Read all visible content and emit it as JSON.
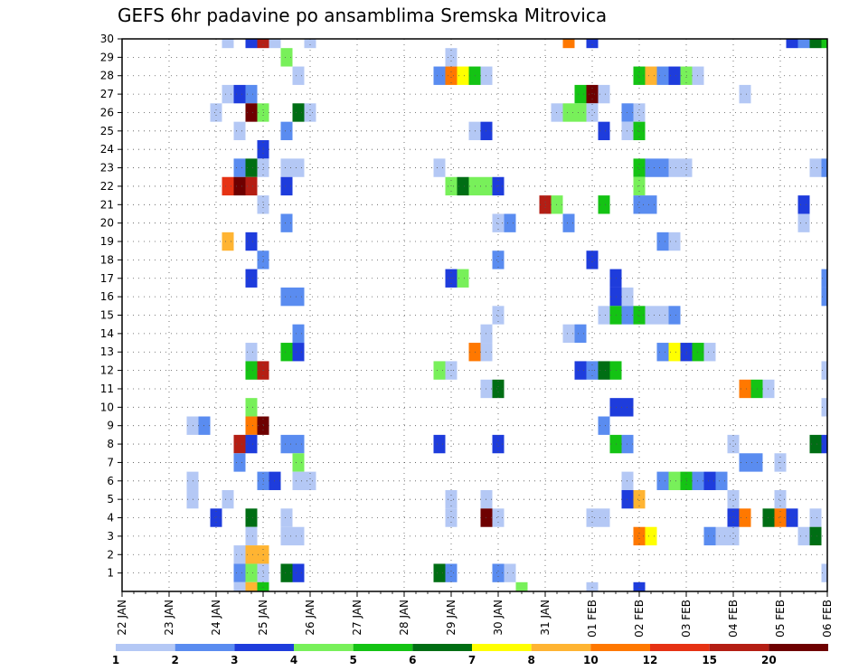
{
  "chart_data": {
    "type": "heatmap",
    "title": "GEFS 6hr padavine po ansamblima Sremska Mitrovica",
    "xlabel": "",
    "ylabel": "",
    "x_ticks": [
      "22 JAN",
      "23 JAN",
      "24 JAN",
      "25 JAN",
      "26 JAN",
      "27 JAN",
      "28 JAN",
      "29 JAN",
      "30 JAN",
      "31 JAN",
      "01 FEB",
      "02 FEB",
      "03 FEB",
      "04 FEB",
      "05 FEB",
      "06 FEB"
    ],
    "x_unit": "6-hour step (4 per day), step 0 = 22 JAN 00Z",
    "x_range": [
      0,
      60
    ],
    "y_ticks": [
      1,
      2,
      3,
      4,
      5,
      6,
      7,
      8,
      9,
      10,
      11,
      12,
      13,
      14,
      15,
      16,
      17,
      18,
      19,
      20,
      21,
      22,
      23,
      24,
      25,
      26,
      27,
      28,
      29,
      30
    ],
    "y_range": [
      0,
      30
    ],
    "grid": true,
    "legend": {
      "position": "bottom",
      "labels": [
        "1",
        "2",
        "3",
        "4",
        "5",
        "6",
        "7",
        "8",
        "10",
        "12",
        "15",
        "20"
      ],
      "colors": [
        "#b4c8f5",
        "#5a8cf0",
        "#1e3cdc",
        "#78f05a",
        "#14c314",
        "#006e14",
        "#ffff00",
        "#ffb432",
        "#ff7800",
        "#e63214",
        "#b41e14",
        "#6e0000"
      ]
    },
    "cells_format": "[member, step, precipitation_class] where class index maps to legend colors",
    "cells": [
      [
        30,
        9,
        0
      ],
      [
        30,
        11,
        2
      ],
      [
        30,
        12,
        10
      ],
      [
        30,
        13,
        0
      ],
      [
        30,
        16,
        0
      ],
      [
        30,
        38,
        8
      ],
      [
        30,
        40,
        2
      ],
      [
        30,
        57,
        2
      ],
      [
        30,
        58,
        1
      ],
      [
        30,
        59,
        5
      ],
      [
        30,
        60,
        4
      ],
      [
        29,
        14,
        3
      ],
      [
        29,
        28,
        0
      ],
      [
        28,
        15,
        0
      ],
      [
        28,
        27,
        1
      ],
      [
        28,
        28,
        8
      ],
      [
        28,
        29,
        6
      ],
      [
        28,
        30,
        4
      ],
      [
        28,
        31,
        0
      ],
      [
        28,
        44,
        4
      ],
      [
        28,
        45,
        7
      ],
      [
        28,
        46,
        1
      ],
      [
        28,
        47,
        2
      ],
      [
        28,
        48,
        3
      ],
      [
        28,
        49,
        0
      ],
      [
        27,
        9,
        0
      ],
      [
        27,
        10,
        2
      ],
      [
        27,
        11,
        1
      ],
      [
        27,
        39,
        4
      ],
      [
        27,
        40,
        11
      ],
      [
        27,
        41,
        0
      ],
      [
        27,
        53,
        0
      ],
      [
        26,
        8,
        0
      ],
      [
        26,
        11,
        11
      ],
      [
        26,
        12,
        3
      ],
      [
        26,
        15,
        5
      ],
      [
        26,
        16,
        0
      ],
      [
        26,
        37,
        0
      ],
      [
        26,
        38,
        3
      ],
      [
        26,
        39,
        3
      ],
      [
        26,
        40,
        0
      ],
      [
        26,
        43,
        1
      ],
      [
        26,
        44,
        0
      ],
      [
        25,
        10,
        0
      ],
      [
        25,
        14,
        1
      ],
      [
        25,
        30,
        0
      ],
      [
        25,
        31,
        2
      ],
      [
        25,
        41,
        2
      ],
      [
        25,
        43,
        0
      ],
      [
        25,
        44,
        4
      ],
      [
        24,
        12,
        2
      ],
      [
        23,
        10,
        1
      ],
      [
        23,
        11,
        5
      ],
      [
        23,
        12,
        0
      ],
      [
        23,
        14,
        0
      ],
      [
        23,
        15,
        0
      ],
      [
        23,
        27,
        0
      ],
      [
        23,
        44,
        4
      ],
      [
        23,
        45,
        1
      ],
      [
        23,
        46,
        1
      ],
      [
        23,
        47,
        0
      ],
      [
        23,
        48,
        0
      ],
      [
        23,
        59,
        0
      ],
      [
        23,
        60,
        1
      ],
      [
        22,
        9,
        9
      ],
      [
        22,
        10,
        11
      ],
      [
        22,
        11,
        10
      ],
      [
        22,
        14,
        2
      ],
      [
        22,
        28,
        3
      ],
      [
        22,
        29,
        5
      ],
      [
        22,
        30,
        3
      ],
      [
        22,
        31,
        3
      ],
      [
        22,
        32,
        2
      ],
      [
        22,
        44,
        3
      ],
      [
        21,
        12,
        0
      ],
      [
        21,
        36,
        10
      ],
      [
        21,
        37,
        3
      ],
      [
        21,
        41,
        4
      ],
      [
        21,
        44,
        1
      ],
      [
        21,
        45,
        1
      ],
      [
        21,
        58,
        2
      ],
      [
        20,
        14,
        1
      ],
      [
        20,
        32,
        0
      ],
      [
        20,
        33,
        1
      ],
      [
        20,
        38,
        1
      ],
      [
        20,
        58,
        0
      ],
      [
        19,
        9,
        7
      ],
      [
        19,
        11,
        2
      ],
      [
        19,
        46,
        1
      ],
      [
        19,
        47,
        0
      ],
      [
        18,
        12,
        1
      ],
      [
        18,
        32,
        1
      ],
      [
        18,
        40,
        2
      ],
      [
        17,
        11,
        2
      ],
      [
        17,
        28,
        2
      ],
      [
        17,
        29,
        3
      ],
      [
        17,
        42,
        2
      ],
      [
        17,
        60,
        1
      ],
      [
        16,
        14,
        1
      ],
      [
        16,
        15,
        1
      ],
      [
        16,
        42,
        2
      ],
      [
        16,
        43,
        0
      ],
      [
        16,
        60,
        1
      ],
      [
        15,
        32,
        0
      ],
      [
        15,
        41,
        0
      ],
      [
        15,
        42,
        4
      ],
      [
        15,
        43,
        1
      ],
      [
        15,
        44,
        4
      ],
      [
        15,
        45,
        0
      ],
      [
        15,
        46,
        0
      ],
      [
        15,
        47,
        1
      ],
      [
        14,
        15,
        1
      ],
      [
        14,
        31,
        0
      ],
      [
        14,
        38,
        0
      ],
      [
        14,
        39,
        1
      ],
      [
        13,
        11,
        0
      ],
      [
        13,
        14,
        4
      ],
      [
        13,
        15,
        2
      ],
      [
        13,
        30,
        8
      ],
      [
        13,
        31,
        0
      ],
      [
        13,
        46,
        1
      ],
      [
        13,
        47,
        6
      ],
      [
        13,
        48,
        2
      ],
      [
        13,
        49,
        4
      ],
      [
        13,
        50,
        0
      ],
      [
        12,
        11,
        4
      ],
      [
        12,
        12,
        10
      ],
      [
        12,
        27,
        3
      ],
      [
        12,
        28,
        0
      ],
      [
        12,
        39,
        2
      ],
      [
        12,
        40,
        1
      ],
      [
        12,
        41,
        5
      ],
      [
        12,
        42,
        4
      ],
      [
        12,
        60,
        0
      ],
      [
        11,
        31,
        0
      ],
      [
        11,
        32,
        5
      ],
      [
        11,
        53,
        8
      ],
      [
        11,
        54,
        4
      ],
      [
        11,
        55,
        0
      ],
      [
        10,
        11,
        3
      ],
      [
        10,
        42,
        2
      ],
      [
        10,
        43,
        2
      ],
      [
        10,
        60,
        0
      ],
      [
        9,
        6,
        0
      ],
      [
        9,
        7,
        1
      ],
      [
        9,
        11,
        8
      ],
      [
        9,
        12,
        11
      ],
      [
        9,
        41,
        1
      ],
      [
        8,
        10,
        10
      ],
      [
        8,
        11,
        2
      ],
      [
        8,
        14,
        1
      ],
      [
        8,
        15,
        1
      ],
      [
        8,
        27,
        2
      ],
      [
        8,
        32,
        2
      ],
      [
        8,
        42,
        4
      ],
      [
        8,
        43,
        1
      ],
      [
        8,
        52,
        0
      ],
      [
        8,
        59,
        5
      ],
      [
        8,
        60,
        2
      ],
      [
        7,
        10,
        1
      ],
      [
        7,
        15,
        3
      ],
      [
        7,
        53,
        1
      ],
      [
        7,
        54,
        1
      ],
      [
        7,
        56,
        0
      ],
      [
        6,
        6,
        0
      ],
      [
        6,
        12,
        1
      ],
      [
        6,
        13,
        2
      ],
      [
        6,
        15,
        0
      ],
      [
        6,
        16,
        0
      ],
      [
        6,
        43,
        0
      ],
      [
        6,
        46,
        1
      ],
      [
        6,
        47,
        3
      ],
      [
        6,
        48,
        4
      ],
      [
        6,
        49,
        1
      ],
      [
        6,
        50,
        2
      ],
      [
        6,
        51,
        1
      ],
      [
        5,
        6,
        0
      ],
      [
        5,
        9,
        0
      ],
      [
        5,
        28,
        0
      ],
      [
        5,
        31,
        0
      ],
      [
        5,
        43,
        2
      ],
      [
        5,
        44,
        7
      ],
      [
        5,
        52,
        0
      ],
      [
        5,
        56,
        0
      ],
      [
        4,
        8,
        2
      ],
      [
        4,
        11,
        5
      ],
      [
        4,
        14,
        0
      ],
      [
        4,
        28,
        0
      ],
      [
        4,
        31,
        11
      ],
      [
        4,
        32,
        0
      ],
      [
        4,
        40,
        0
      ],
      [
        4,
        41,
        0
      ],
      [
        4,
        52,
        2
      ],
      [
        4,
        53,
        8
      ],
      [
        4,
        55,
        5
      ],
      [
        4,
        56,
        8
      ],
      [
        4,
        57,
        2
      ],
      [
        4,
        59,
        0
      ],
      [
        3,
        11,
        0
      ],
      [
        3,
        14,
        0
      ],
      [
        3,
        15,
        0
      ],
      [
        3,
        44,
        8
      ],
      [
        3,
        45,
        6
      ],
      [
        3,
        50,
        1
      ],
      [
        3,
        51,
        0
      ],
      [
        3,
        52,
        0
      ],
      [
        3,
        58,
        0
      ],
      [
        3,
        59,
        5
      ],
      [
        2,
        10,
        0
      ],
      [
        2,
        11,
        7
      ],
      [
        2,
        12,
        7
      ],
      [
        1,
        10,
        1
      ],
      [
        1,
        11,
        3
      ],
      [
        1,
        12,
        0
      ],
      [
        1,
        14,
        5
      ],
      [
        1,
        15,
        2
      ],
      [
        1,
        27,
        5
      ],
      [
        1,
        28,
        1
      ],
      [
        1,
        32,
        1
      ],
      [
        1,
        33,
        0
      ],
      [
        1,
        60,
        0
      ],
      [
        0,
        10,
        0
      ],
      [
        0,
        11,
        7
      ],
      [
        0,
        12,
        4
      ],
      [
        0,
        34,
        3
      ],
      [
        0,
        40,
        0
      ],
      [
        0,
        44,
        2
      ]
    ]
  }
}
